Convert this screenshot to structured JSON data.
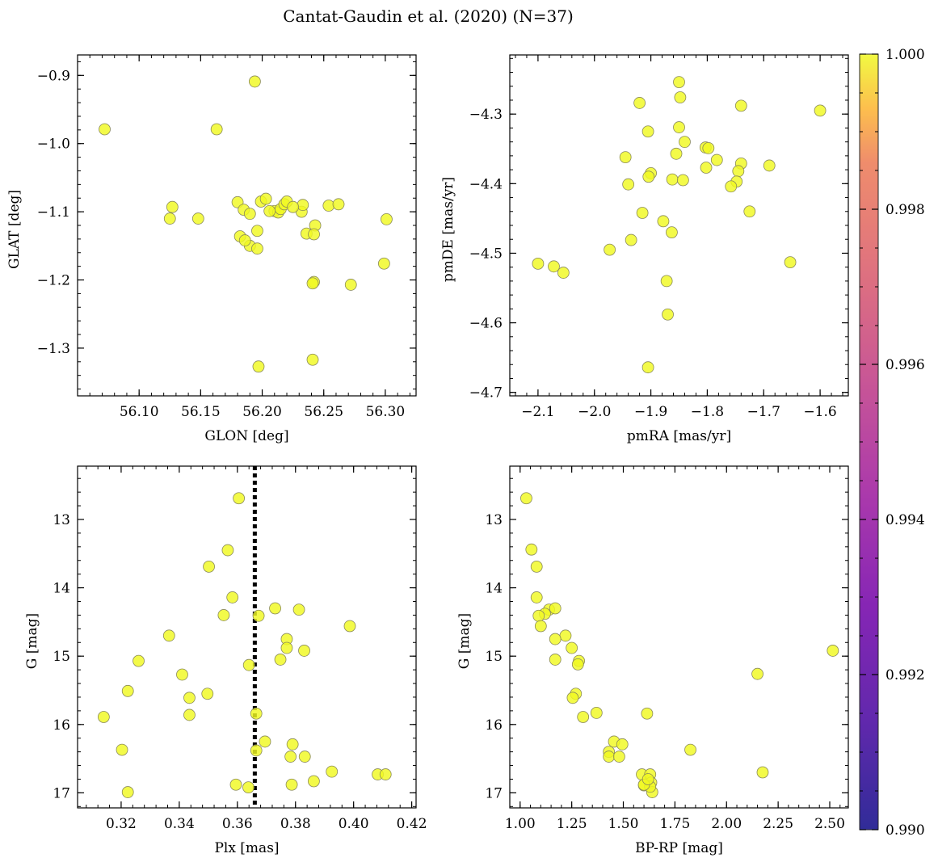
{
  "figure": {
    "title": "Cantat-Gaudin et al. (2020) (N=37)",
    "colorbar": {
      "min": 0.99,
      "max": 1.0,
      "ticks": [
        "0.990",
        "0.992",
        "0.994",
        "0.996",
        "0.998",
        "1.000"
      ],
      "colormap": "plasma"
    },
    "point_color": "#f0f921",
    "point_edge": "#8a8a5a"
  },
  "chart_data": [
    {
      "type": "scatter",
      "id": "glon-glat",
      "xlabel": "GLON [deg]",
      "ylabel": "GLAT [deg]",
      "xlim": [
        56.05,
        56.325
      ],
      "ylim": [
        -1.37,
        -0.87
      ],
      "xticks": [
        56.1,
        56.15,
        56.2,
        56.25,
        56.3
      ],
      "xtick_labels": [
        "56.10",
        "56.15",
        "56.20",
        "56.25",
        "56.30"
      ],
      "yticks": [
        -0.9,
        -1.0,
        -1.1,
        -1.2,
        -1.3
      ],
      "ytick_labels": [
        "−0.9",
        "−1.0",
        "−1.1",
        "−1.2",
        "−1.3"
      ],
      "points": [
        [
          56.072,
          -0.979
        ],
        [
          56.194,
          -0.909
        ],
        [
          56.163,
          -0.979
        ],
        [
          56.127,
          -1.093
        ],
        [
          56.125,
          -1.11
        ],
        [
          56.148,
          -1.11
        ],
        [
          56.18,
          -1.086
        ],
        [
          56.185,
          -1.097
        ],
        [
          56.19,
          -1.103
        ],
        [
          56.199,
          -1.085
        ],
        [
          56.203,
          -1.081
        ],
        [
          56.21,
          -1.099
        ],
        [
          56.213,
          -1.101
        ],
        [
          56.215,
          -1.096
        ],
        [
          56.218,
          -1.089
        ],
        [
          56.22,
          -1.085
        ],
        [
          56.232,
          -1.1
        ],
        [
          56.233,
          -1.09
        ],
        [
          56.254,
          -1.091
        ],
        [
          56.262,
          -1.089
        ],
        [
          56.301,
          -1.111
        ],
        [
          56.182,
          -1.136
        ],
        [
          56.19,
          -1.15
        ],
        [
          56.196,
          -1.128
        ],
        [
          56.196,
          -1.154
        ],
        [
          56.236,
          -1.132
        ],
        [
          56.243,
          -1.12
        ],
        [
          56.242,
          -1.133
        ],
        [
          56.242,
          -1.203
        ],
        [
          56.241,
          -1.205
        ],
        [
          56.272,
          -1.207
        ],
        [
          56.299,
          -1.176
        ],
        [
          56.241,
          -1.317
        ],
        [
          56.197,
          -1.327
        ],
        [
          56.206,
          -1.099
        ],
        [
          56.225,
          -1.093
        ],
        [
          56.186,
          -1.142
        ]
      ]
    },
    {
      "type": "scatter",
      "id": "pmra-pmde",
      "xlabel": "pmRA [mas/yr]",
      "ylabel": "pmDE [mas/yr]",
      "xlim": [
        -2.15,
        -1.55
      ],
      "ylim": [
        -4.705,
        -4.215
      ],
      "xticks": [
        -2.1,
        -2.0,
        -1.9,
        -1.8,
        -1.7,
        -1.6
      ],
      "xtick_labels": [
        "−2.1",
        "−2.0",
        "−1.9",
        "−1.8",
        "−1.7",
        "−1.6"
      ],
      "yticks": [
        -4.3,
        -4.4,
        -4.5,
        -4.6,
        -4.7
      ],
      "ytick_labels": [
        "−4.3",
        "−4.4",
        "−4.5",
        "−4.6",
        "−4.7"
      ],
      "points": [
        [
          -1.85,
          -4.254
        ],
        [
          -1.848,
          -4.276
        ],
        [
          -1.92,
          -4.284
        ],
        [
          -1.74,
          -4.288
        ],
        [
          -1.6,
          -4.295
        ],
        [
          -1.905,
          -4.325
        ],
        [
          -1.85,
          -4.319
        ],
        [
          -1.84,
          -4.34
        ],
        [
          -1.855,
          -4.357
        ],
        [
          -1.803,
          -4.348
        ],
        [
          -1.798,
          -4.349
        ],
        [
          -1.783,
          -4.366
        ],
        [
          -1.945,
          -4.362
        ],
        [
          -1.74,
          -4.371
        ],
        [
          -1.69,
          -4.374
        ],
        [
          -1.745,
          -4.382
        ],
        [
          -1.802,
          -4.377
        ],
        [
          -1.9,
          -4.385
        ],
        [
          -1.904,
          -4.39
        ],
        [
          -1.862,
          -4.394
        ],
        [
          -1.843,
          -4.395
        ],
        [
          -1.94,
          -4.401
        ],
        [
          -1.748,
          -4.397
        ],
        [
          -1.758,
          -4.404
        ],
        [
          -1.725,
          -4.44
        ],
        [
          -1.915,
          -4.442
        ],
        [
          -1.878,
          -4.454
        ],
        [
          -1.863,
          -4.47
        ],
        [
          -1.935,
          -4.481
        ],
        [
          -1.973,
          -4.495
        ],
        [
          -2.1,
          -4.515
        ],
        [
          -2.072,
          -4.519
        ],
        [
          -2.055,
          -4.528
        ],
        [
          -1.653,
          -4.513
        ],
        [
          -1.872,
          -4.54
        ],
        [
          -1.87,
          -4.588
        ],
        [
          -1.905,
          -4.664
        ]
      ]
    },
    {
      "type": "scatter",
      "id": "plx-g",
      "xlabel": "Plx [mas]",
      "ylabel": "G [mag]",
      "xlim": [
        0.305,
        0.4215
      ],
      "ylim": [
        17.22,
        12.22
      ],
      "y_inverted": true,
      "vline": 0.366,
      "xticks": [
        0.32,
        0.34,
        0.36,
        0.38,
        0.4,
        0.42
      ],
      "xtick_labels": [
        "0.32",
        "0.34",
        "0.36",
        "0.38",
        "0.40",
        "0.42"
      ],
      "yticks": [
        13,
        14,
        15,
        16,
        17
      ],
      "ytick_labels": [
        "13",
        "14",
        "15",
        "16",
        "17"
      ],
      "points": [
        [
          0.3605,
          12.69
        ],
        [
          0.3567,
          13.45
        ],
        [
          0.3502,
          13.69
        ],
        [
          0.3583,
          14.14
        ],
        [
          0.373,
          14.3
        ],
        [
          0.3812,
          14.32
        ],
        [
          0.3553,
          14.4
        ],
        [
          0.3673,
          14.41
        ],
        [
          0.3987,
          14.56
        ],
        [
          0.3365,
          14.7
        ],
        [
          0.377,
          14.75
        ],
        [
          0.377,
          14.88
        ],
        [
          0.383,
          14.92
        ],
        [
          0.3748,
          15.05
        ],
        [
          0.326,
          15.07
        ],
        [
          0.364,
          15.13
        ],
        [
          0.341,
          15.27
        ],
        [
          0.3223,
          15.51
        ],
        [
          0.3497,
          15.55
        ],
        [
          0.3435,
          15.61
        ],
        [
          0.3665,
          15.84
        ],
        [
          0.3435,
          15.86
        ],
        [
          0.314,
          15.89
        ],
        [
          0.3695,
          16.25
        ],
        [
          0.379,
          16.29
        ],
        [
          0.3203,
          16.37
        ],
        [
          0.3665,
          16.38
        ],
        [
          0.3783,
          16.47
        ],
        [
          0.3832,
          16.47
        ],
        [
          0.3925,
          16.69
        ],
        [
          0.4083,
          16.73
        ],
        [
          0.411,
          16.73
        ],
        [
          0.3863,
          16.83
        ],
        [
          0.3595,
          16.88
        ],
        [
          0.3638,
          16.92
        ],
        [
          0.3787,
          16.88
        ],
        [
          0.3223,
          16.99
        ]
      ]
    },
    {
      "type": "scatter",
      "id": "bprp-g",
      "xlabel": "BP-RP [mag]",
      "ylabel": "G [mag]",
      "xlim": [
        0.95,
        2.59
      ],
      "ylim": [
        17.22,
        12.22
      ],
      "y_inverted": true,
      "xticks": [
        1.0,
        1.25,
        1.5,
        1.75,
        2.0,
        2.25,
        2.5
      ],
      "xtick_labels": [
        "1.00",
        "1.25",
        "1.50",
        "1.75",
        "2.00",
        "2.25",
        "2.50"
      ],
      "yticks": [
        13,
        14,
        15,
        16,
        17
      ],
      "ytick_labels": [
        "13",
        "14",
        "15",
        "16",
        "17"
      ],
      "points": [
        [
          1.03,
          12.69
        ],
        [
          1.055,
          13.44
        ],
        [
          1.08,
          13.69
        ],
        [
          1.08,
          14.14
        ],
        [
          1.14,
          14.32
        ],
        [
          1.17,
          14.3
        ],
        [
          1.12,
          14.38
        ],
        [
          1.09,
          14.41
        ],
        [
          1.1,
          14.56
        ],
        [
          1.22,
          14.7
        ],
        [
          1.17,
          14.75
        ],
        [
          1.25,
          14.88
        ],
        [
          1.285,
          15.07
        ],
        [
          1.28,
          15.12
        ],
        [
          1.17,
          15.05
        ],
        [
          1.27,
          15.55
        ],
        [
          1.255,
          15.61
        ],
        [
          1.37,
          15.83
        ],
        [
          1.305,
          15.89
        ],
        [
          1.615,
          15.84
        ],
        [
          2.515,
          14.92
        ],
        [
          2.15,
          15.26
        ],
        [
          1.455,
          16.25
        ],
        [
          1.495,
          16.29
        ],
        [
          1.43,
          16.4
        ],
        [
          1.43,
          16.47
        ],
        [
          1.48,
          16.47
        ],
        [
          1.825,
          16.37
        ],
        [
          2.175,
          16.7
        ],
        [
          1.59,
          16.73
        ],
        [
          1.63,
          16.73
        ],
        [
          1.6,
          16.89
        ],
        [
          1.635,
          16.85
        ],
        [
          1.64,
          16.99
        ],
        [
          1.63,
          16.91
        ],
        [
          1.6,
          16.88
        ],
        [
          1.62,
          16.8
        ]
      ]
    }
  ]
}
